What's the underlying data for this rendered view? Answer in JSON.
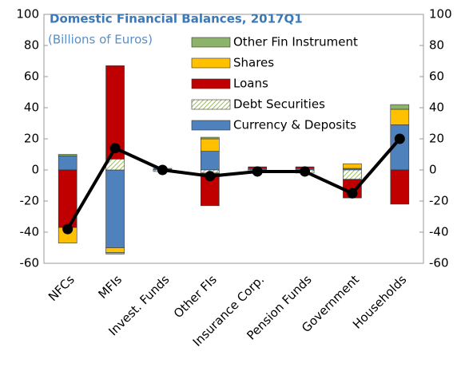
{
  "chart_data": {
    "type": "stacked_bar_line",
    "title": "Domestic Financial Balances, 2017Q1",
    "subtitle": "(Billions of Euros)",
    "categories": [
      "NFCs",
      "MFIs",
      "Invest. Funds",
      "Other FIs",
      "Insurance Corp.",
      "Pension Funds",
      "Government",
      "Households"
    ],
    "series": [
      {
        "name": "Currency & Deposits",
        "color": "#4f81bd",
        "values": [
          9,
          -50,
          1,
          12,
          1,
          1,
          1,
          29
        ]
      },
      {
        "name": "Debt Securities",
        "color": "#9bbb59",
        "pattern": "hatch",
        "values": [
          0,
          7,
          -1,
          -2,
          -1,
          -2,
          -6,
          0
        ]
      },
      {
        "name": "Loans",
        "color": "#c00000",
        "values": [
          -37,
          60,
          0,
          -21,
          1,
          1,
          -12,
          -22
        ]
      },
      {
        "name": "Shares",
        "color": "#ffc000",
        "values": [
          -10,
          -3,
          0,
          8,
          0,
          0,
          3,
          10
        ]
      },
      {
        "name": "Other Fin Instrument",
        "color": "#8db36a",
        "values": [
          1,
          -1,
          0,
          1,
          0,
          0,
          0,
          3
        ]
      }
    ],
    "line": {
      "color": "#000000",
      "values": [
        -38,
        14,
        0,
        -4,
        -1,
        -1,
        -15,
        20
      ]
    },
    "ylim": [
      -60,
      100
    ],
    "yticks": [
      -60,
      -40,
      -20,
      0,
      20,
      40,
      60,
      80,
      100
    ],
    "y2lim": [
      -60,
      100
    ],
    "y2ticks": [
      -60,
      -40,
      -20,
      0,
      20,
      40,
      60,
      80,
      100
    ],
    "grid": false
  }
}
